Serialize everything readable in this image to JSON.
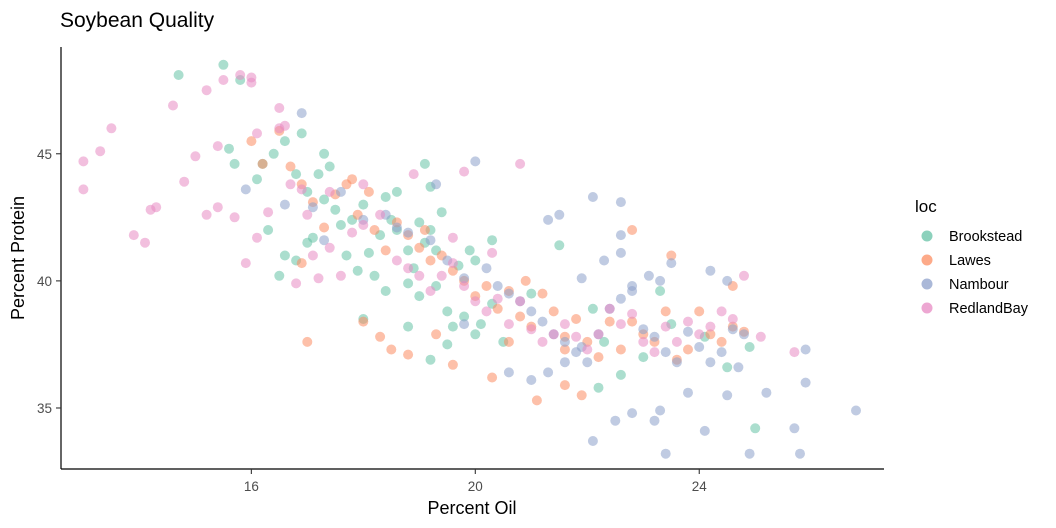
{
  "chart_data": {
    "type": "scatter",
    "title": "Soybean Quality",
    "xlabel": "Percent Oil",
    "ylabel": "Percent Protein",
    "xlim": [
      12.6,
      27.3
    ],
    "ylim": [
      32.6,
      49.2
    ],
    "x_ticks": [
      16,
      20,
      24
    ],
    "y_ticks": [
      35,
      40,
      45
    ],
    "grid": false,
    "legend": {
      "title": "loc",
      "position": "right"
    },
    "point_opacity": 0.55,
    "series": [
      {
        "name": "Brookstead",
        "color": "#66c2a5",
        "points": [
          [
            14.7,
            48.1
          ],
          [
            15.5,
            48.5
          ],
          [
            15.8,
            47.9
          ],
          [
            15.6,
            45.2
          ],
          [
            15.7,
            44.6
          ],
          [
            16.1,
            44.0
          ],
          [
            16.2,
            44.6
          ],
          [
            16.4,
            45.0
          ],
          [
            16.6,
            45.5
          ],
          [
            16.8,
            44.2
          ],
          [
            16.9,
            45.8
          ],
          [
            17.0,
            43.5
          ],
          [
            17.2,
            44.2
          ],
          [
            17.3,
            45.0
          ],
          [
            17.4,
            44.5
          ],
          [
            17.3,
            43.2
          ],
          [
            17.5,
            42.8
          ],
          [
            17.1,
            41.7
          ],
          [
            16.8,
            40.8
          ],
          [
            16.5,
            40.2
          ],
          [
            16.6,
            41.0
          ],
          [
            17.0,
            41.5
          ],
          [
            17.6,
            42.2
          ],
          [
            17.7,
            41.0
          ],
          [
            17.9,
            40.4
          ],
          [
            18.1,
            41.1
          ],
          [
            18.2,
            40.2
          ],
          [
            18.4,
            39.6
          ],
          [
            18.3,
            41.8
          ],
          [
            18.5,
            42.4
          ],
          [
            18.6,
            42.0
          ],
          [
            18.8,
            41.2
          ],
          [
            18.9,
            40.5
          ],
          [
            19.0,
            42.3
          ],
          [
            19.1,
            41.5
          ],
          [
            19.2,
            42.0
          ],
          [
            19.3,
            41.2
          ],
          [
            19.4,
            42.7
          ],
          [
            19.2,
            43.7
          ],
          [
            19.1,
            44.6
          ],
          [
            18.6,
            43.5
          ],
          [
            18.4,
            43.3
          ],
          [
            18.0,
            43.0
          ],
          [
            17.8,
            42.4
          ],
          [
            18.8,
            39.9
          ],
          [
            19.0,
            39.4
          ],
          [
            19.3,
            39.8
          ],
          [
            19.5,
            38.8
          ],
          [
            19.6,
            38.2
          ],
          [
            19.8,
            38.6
          ],
          [
            20.0,
            37.9
          ],
          [
            20.1,
            38.3
          ],
          [
            20.3,
            39.1
          ],
          [
            20.5,
            37.6
          ],
          [
            20.3,
            41.6
          ],
          [
            20.0,
            40.8
          ],
          [
            19.9,
            41.2
          ],
          [
            19.7,
            40.6
          ],
          [
            19.5,
            37.5
          ],
          [
            19.2,
            36.9
          ],
          [
            18.8,
            38.2
          ],
          [
            18.0,
            38.5
          ],
          [
            21.5,
            41.4
          ],
          [
            22.1,
            38.9
          ],
          [
            22.3,
            37.6
          ],
          [
            22.2,
            35.8
          ],
          [
            22.6,
            36.3
          ],
          [
            23.0,
            37.0
          ],
          [
            23.3,
            39.6
          ],
          [
            23.5,
            38.3
          ],
          [
            24.1,
            37.8
          ],
          [
            24.5,
            36.6
          ],
          [
            24.9,
            37.4
          ],
          [
            25.0,
            34.2
          ],
          [
            21.0,
            39.5
          ],
          [
            16.3,
            42.0
          ]
        ]
      },
      {
        "name": "Lawes",
        "color": "#fc8d62",
        "points": [
          [
            16.0,
            45.5
          ],
          [
            16.2,
            44.6
          ],
          [
            16.5,
            45.9
          ],
          [
            16.7,
            44.5
          ],
          [
            16.9,
            43.8
          ],
          [
            17.1,
            43.1
          ],
          [
            17.3,
            42.1
          ],
          [
            17.5,
            43.4
          ],
          [
            17.7,
            43.8
          ],
          [
            17.9,
            42.6
          ],
          [
            18.1,
            43.5
          ],
          [
            18.2,
            42.0
          ],
          [
            18.4,
            41.2
          ],
          [
            18.6,
            42.3
          ],
          [
            18.8,
            41.8
          ],
          [
            19.0,
            41.3
          ],
          [
            19.2,
            40.8
          ],
          [
            19.4,
            41.0
          ],
          [
            19.6,
            40.4
          ],
          [
            19.8,
            40.0
          ],
          [
            20.0,
            39.4
          ],
          [
            20.2,
            39.8
          ],
          [
            20.4,
            38.9
          ],
          [
            20.6,
            39.6
          ],
          [
            20.8,
            38.6
          ],
          [
            21.0,
            38.2
          ],
          [
            21.2,
            39.5
          ],
          [
            21.4,
            38.8
          ],
          [
            21.6,
            37.8
          ],
          [
            21.8,
            38.5
          ],
          [
            22.0,
            37.6
          ],
          [
            22.2,
            37.0
          ],
          [
            22.4,
            38.4
          ],
          [
            22.6,
            37.3
          ],
          [
            22.8,
            38.4
          ],
          [
            23.0,
            37.9
          ],
          [
            23.2,
            37.6
          ],
          [
            23.4,
            38.8
          ],
          [
            23.6,
            36.9
          ],
          [
            23.8,
            37.3
          ],
          [
            24.0,
            38.8
          ],
          [
            24.2,
            37.9
          ],
          [
            24.4,
            37.6
          ],
          [
            24.6,
            38.2
          ],
          [
            24.8,
            38.0
          ],
          [
            18.0,
            38.4
          ],
          [
            18.3,
            37.8
          ],
          [
            18.5,
            37.3
          ],
          [
            18.8,
            37.1
          ],
          [
            19.3,
            37.9
          ],
          [
            19.6,
            36.7
          ],
          [
            20.3,
            36.2
          ],
          [
            20.6,
            37.6
          ],
          [
            21.1,
            35.3
          ],
          [
            21.6,
            35.9
          ],
          [
            21.9,
            35.5
          ],
          [
            22.8,
            42.0
          ],
          [
            24.6,
            39.8
          ],
          [
            17.0,
            37.6
          ],
          [
            20.9,
            40.0
          ],
          [
            19.1,
            42.0
          ],
          [
            17.8,
            44.0
          ],
          [
            21.6,
            37.3
          ],
          [
            23.5,
            41.0
          ],
          [
            16.9,
            40.7
          ]
        ]
      },
      {
        "name": "Nambour",
        "color": "#8da0cb",
        "points": [
          [
            16.9,
            46.6
          ],
          [
            15.9,
            43.6
          ],
          [
            16.6,
            43.0
          ],
          [
            17.1,
            42.9
          ],
          [
            17.3,
            41.6
          ],
          [
            17.6,
            43.5
          ],
          [
            18.0,
            42.4
          ],
          [
            18.4,
            42.6
          ],
          [
            18.8,
            41.9
          ],
          [
            19.2,
            41.6
          ],
          [
            19.5,
            40.8
          ],
          [
            19.8,
            40.1
          ],
          [
            20.0,
            44.7
          ],
          [
            20.2,
            40.5
          ],
          [
            20.4,
            39.8
          ],
          [
            20.6,
            39.5
          ],
          [
            20.8,
            39.2
          ],
          [
            21.0,
            38.8
          ],
          [
            21.2,
            38.4
          ],
          [
            21.4,
            37.9
          ],
          [
            21.6,
            37.6
          ],
          [
            21.8,
            37.2
          ],
          [
            22.0,
            36.8
          ],
          [
            22.2,
            37.9
          ],
          [
            22.4,
            38.9
          ],
          [
            22.6,
            39.3
          ],
          [
            22.8,
            39.6
          ],
          [
            23.0,
            38.1
          ],
          [
            23.2,
            37.8
          ],
          [
            23.4,
            37.2
          ],
          [
            23.6,
            36.8
          ],
          [
            23.8,
            38.0
          ],
          [
            24.0,
            37.4
          ],
          [
            24.2,
            36.8
          ],
          [
            24.4,
            37.2
          ],
          [
            24.6,
            38.1
          ],
          [
            24.8,
            37.9
          ],
          [
            21.3,
            42.4
          ],
          [
            21.5,
            42.6
          ],
          [
            22.1,
            43.3
          ],
          [
            22.6,
            43.1
          ],
          [
            22.6,
            41.8
          ],
          [
            21.9,
            40.1
          ],
          [
            22.3,
            40.8
          ],
          [
            22.6,
            41.1
          ],
          [
            22.8,
            39.8
          ],
          [
            23.1,
            40.2
          ],
          [
            23.3,
            40.0
          ],
          [
            23.5,
            40.7
          ],
          [
            24.2,
            40.4
          ],
          [
            24.5,
            40.0
          ],
          [
            20.6,
            36.4
          ],
          [
            21.0,
            36.1
          ],
          [
            21.3,
            36.4
          ],
          [
            21.6,
            36.8
          ],
          [
            22.1,
            33.7
          ],
          [
            22.5,
            34.5
          ],
          [
            22.8,
            34.8
          ],
          [
            23.2,
            34.5
          ],
          [
            23.3,
            34.9
          ],
          [
            23.4,
            33.2
          ],
          [
            23.8,
            35.6
          ],
          [
            24.1,
            34.1
          ],
          [
            24.5,
            35.5
          ],
          [
            24.7,
            36.6
          ],
          [
            24.9,
            33.2
          ],
          [
            25.2,
            35.6
          ],
          [
            25.7,
            34.2
          ],
          [
            25.8,
            33.2
          ],
          [
            25.9,
            37.3
          ],
          [
            25.9,
            36.0
          ],
          [
            26.8,
            34.9
          ],
          [
            19.3,
            43.8
          ],
          [
            18.6,
            42.1
          ],
          [
            19.8,
            38.3
          ],
          [
            21.9,
            37.4
          ]
        ]
      },
      {
        "name": "RedlandBay",
        "color": "#e78ac3",
        "points": [
          [
            13.0,
            44.7
          ],
          [
            13.0,
            43.6
          ],
          [
            13.3,
            45.1
          ],
          [
            13.5,
            46.0
          ],
          [
            13.9,
            41.8
          ],
          [
            14.1,
            41.5
          ],
          [
            14.2,
            42.8
          ],
          [
            14.3,
            42.9
          ],
          [
            14.6,
            46.9
          ],
          [
            14.8,
            43.9
          ],
          [
            15.0,
            44.9
          ],
          [
            15.2,
            47.5
          ],
          [
            15.2,
            42.6
          ],
          [
            15.4,
            45.3
          ],
          [
            15.4,
            42.9
          ],
          [
            15.5,
            47.9
          ],
          [
            15.7,
            42.5
          ],
          [
            15.8,
            48.1
          ],
          [
            15.9,
            40.7
          ],
          [
            16.0,
            47.8
          ],
          [
            16.0,
            48.0
          ],
          [
            16.1,
            45.8
          ],
          [
            16.1,
            41.7
          ],
          [
            16.3,
            42.7
          ],
          [
            16.5,
            46.8
          ],
          [
            16.6,
            46.1
          ],
          [
            16.7,
            43.8
          ],
          [
            16.8,
            39.9
          ],
          [
            17.0,
            42.6
          ],
          [
            17.1,
            41.0
          ],
          [
            17.2,
            40.1
          ],
          [
            17.4,
            41.3
          ],
          [
            17.6,
            40.2
          ],
          [
            17.8,
            41.9
          ],
          [
            18.0,
            42.2
          ],
          [
            18.3,
            42.6
          ],
          [
            18.6,
            40.8
          ],
          [
            18.8,
            40.5
          ],
          [
            19.0,
            40.2
          ],
          [
            19.2,
            39.6
          ],
          [
            19.4,
            40.2
          ],
          [
            19.6,
            40.7
          ],
          [
            19.8,
            39.8
          ],
          [
            20.0,
            39.2
          ],
          [
            20.2,
            38.8
          ],
          [
            20.4,
            39.3
          ],
          [
            20.6,
            38.3
          ],
          [
            20.8,
            39.2
          ],
          [
            20.8,
            44.6
          ],
          [
            21.0,
            38.1
          ],
          [
            21.2,
            37.6
          ],
          [
            21.4,
            37.9
          ],
          [
            21.6,
            38.3
          ],
          [
            21.8,
            37.8
          ],
          [
            22.0,
            37.3
          ],
          [
            22.2,
            37.9
          ],
          [
            22.4,
            38.9
          ],
          [
            22.6,
            38.3
          ],
          [
            22.8,
            38.7
          ],
          [
            23.0,
            37.6
          ],
          [
            23.2,
            37.2
          ],
          [
            23.4,
            38.2
          ],
          [
            23.6,
            37.6
          ],
          [
            23.8,
            38.4
          ],
          [
            24.0,
            37.9
          ],
          [
            24.2,
            38.2
          ],
          [
            24.4,
            38.8
          ],
          [
            24.6,
            38.5
          ],
          [
            24.8,
            40.2
          ],
          [
            25.1,
            37.8
          ],
          [
            25.7,
            37.2
          ],
          [
            19.8,
            44.3
          ],
          [
            18.9,
            44.2
          ],
          [
            18.0,
            43.8
          ],
          [
            17.4,
            43.5
          ],
          [
            16.9,
            43.6
          ],
          [
            16.5,
            46.0
          ],
          [
            19.6,
            41.7
          ],
          [
            20.3,
            41.1
          ]
        ]
      }
    ]
  }
}
